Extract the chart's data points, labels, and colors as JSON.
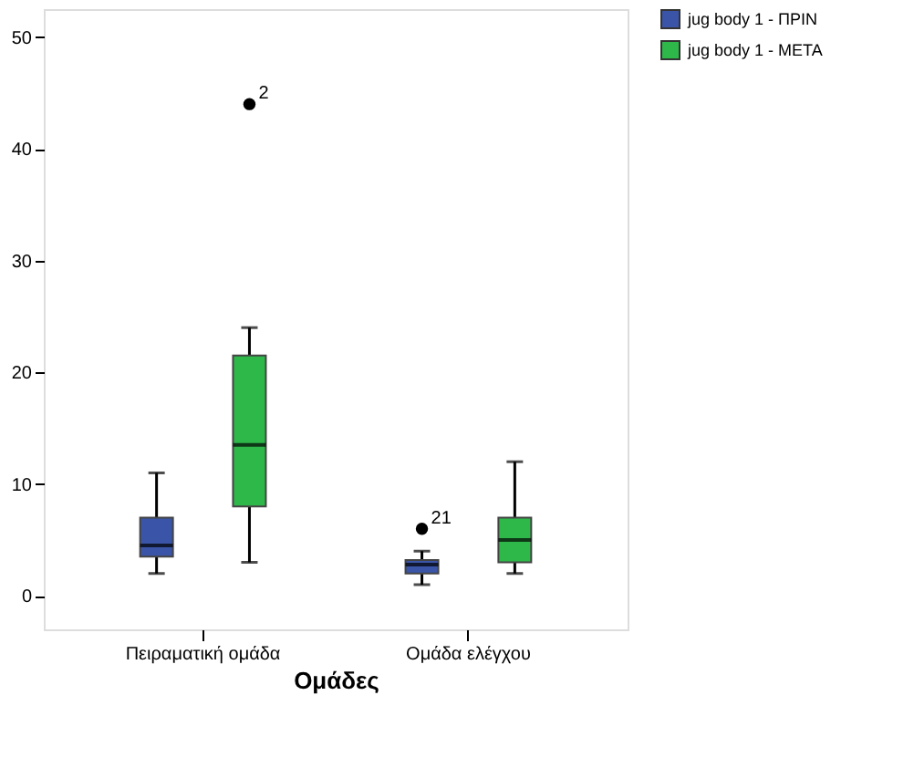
{
  "chart_data": {
    "type": "box",
    "xlabel": "Ομάδες",
    "categories": [
      "Πειραματική ομάδα",
      "Ομάδα ελέγχου"
    ],
    "series": [
      {
        "name": "jug body 1 - ΠΡΙΝ",
        "color": "#3a55a8",
        "boxes": [
          {
            "low": 2,
            "q1": 3.5,
            "median": 4.5,
            "q3": 7,
            "high": 11
          },
          {
            "low": 1,
            "q1": 2,
            "median": 2.8,
            "q3": 3.2,
            "high": 4,
            "outliers": [
              6
            ]
          }
        ]
      },
      {
        "name": "jug body 1 - ΜΕΤΑ",
        "color": "#2eb84a",
        "boxes": [
          {
            "low": 3,
            "q1": 8,
            "median": 13.5,
            "q3": 21.5,
            "high": 24,
            "outliers": [
              44
            ]
          },
          {
            "low": 2,
            "q1": 3,
            "median": 5,
            "q3": 7,
            "high": 12
          }
        ]
      }
    ],
    "annotations": [
      "2",
      "21"
    ],
    "ylim": [
      -3,
      52.5
    ],
    "yticks": [
      0,
      10,
      20,
      30,
      40,
      50
    ],
    "grid": false,
    "legend": "top right",
    "marker": "circle"
  }
}
